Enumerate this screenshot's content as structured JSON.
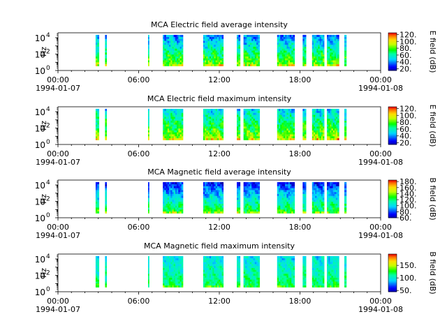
{
  "chart_data": [
    {
      "type": "heatmap",
      "title": "MCA  Electric field average intensity",
      "ylabel": "Hz",
      "y_ticks": [
        "10",
        "10",
        "10"
      ],
      "y_exps": [
        "0",
        "2",
        "4"
      ],
      "x_ticks": [
        "00:00",
        "06:00",
        "12:00",
        "18:00",
        "00:00"
      ],
      "x_dates": [
        "1994-01-07",
        "1994-01-08"
      ],
      "colorbar_label": "E field (dB)",
      "colorbar_ticks": [
        "20.",
        "40.",
        "60.",
        "80.",
        "100.",
        "120."
      ],
      "colorbar_range": [
        15,
        125
      ],
      "colorbar_min": 20,
      "colorbar_step": 20,
      "freq_range_log10": [
        0,
        4.6
      ],
      "data_freq_log10": [
        0.55,
        4.35
      ],
      "segments_hours": [
        [
          2.8,
          3.05
        ],
        [
          3.5,
          3.62
        ],
        [
          6.7,
          6.78
        ],
        [
          7.8,
          9.3
        ],
        [
          10.8,
          12.3
        ],
        [
          13.3,
          13.55
        ],
        [
          13.8,
          15.0
        ],
        [
          16.3,
          17.6
        ],
        [
          18.2,
          18.45
        ],
        [
          18.9,
          19.8
        ],
        [
          20.0,
          20.9
        ],
        [
          21.3,
          21.45
        ]
      ],
      "low_freq_level": 85,
      "high_freq_level": 40
    },
    {
      "type": "heatmap",
      "title": "MCA  Electric field maximum intensity",
      "ylabel": "Hz",
      "y_ticks": [
        "10",
        "10",
        "10"
      ],
      "y_exps": [
        "0",
        "2",
        "4"
      ],
      "x_ticks": [
        "00:00",
        "06:00",
        "12:00",
        "18:00",
        "00:00"
      ],
      "x_dates": [
        "1994-01-07",
        "1994-01-08"
      ],
      "colorbar_label": "E field (dB)",
      "colorbar_ticks": [
        "20.",
        "40.",
        "60.",
        "80.",
        "100.",
        "120."
      ],
      "colorbar_range": [
        15,
        125
      ],
      "colorbar_min": 20,
      "colorbar_step": 20,
      "freq_range_log10": [
        0,
        4.6
      ],
      "data_freq_log10": [
        0.55,
        4.35
      ],
      "segments_hours": [
        [
          2.8,
          3.05
        ],
        [
          3.5,
          3.62
        ],
        [
          6.7,
          6.78
        ],
        [
          7.8,
          9.3
        ],
        [
          10.8,
          12.3
        ],
        [
          13.3,
          13.55
        ],
        [
          13.8,
          15.0
        ],
        [
          16.3,
          17.6
        ],
        [
          18.2,
          18.45
        ],
        [
          18.9,
          19.8
        ],
        [
          20.0,
          20.9
        ],
        [
          21.3,
          21.45
        ]
      ],
      "low_freq_level": 90,
      "high_freq_level": 50
    },
    {
      "type": "heatmap",
      "title": "MCA  Magnetic field average intensity",
      "ylabel": "Hz",
      "y_ticks": [
        "10",
        "10",
        "10"
      ],
      "y_exps": [
        "0",
        "2",
        "4"
      ],
      "x_ticks": [
        "00:00",
        "06:00",
        "12:00",
        "18:00",
        "00:00"
      ],
      "x_dates": [
        "1994-01-07",
        "1994-01-08"
      ],
      "colorbar_label": "B field (dB)",
      "colorbar_ticks": [
        "60.",
        "80.",
        "100.",
        "120.",
        "140.",
        "160.",
        "180."
      ],
      "colorbar_range": [
        60,
        185
      ],
      "colorbar_min": 60,
      "colorbar_step": 20,
      "freq_range_log10": [
        0,
        4.6
      ],
      "data_freq_log10": [
        0.55,
        4.35
      ],
      "segments_hours": [
        [
          2.8,
          3.05
        ],
        [
          3.5,
          3.62
        ],
        [
          6.7,
          6.78
        ],
        [
          7.8,
          9.3
        ],
        [
          10.8,
          12.3
        ],
        [
          13.3,
          13.55
        ],
        [
          13.8,
          15.0
        ],
        [
          16.3,
          17.6
        ],
        [
          18.2,
          18.45
        ],
        [
          18.9,
          19.8
        ],
        [
          20.0,
          20.9
        ],
        [
          21.3,
          21.45
        ]
      ],
      "low_freq_level": 130,
      "high_freq_level": 75
    },
    {
      "type": "heatmap",
      "title": "MCA  Magnetic field maximum intensity",
      "ylabel": "Hz",
      "y_ticks": [
        "10",
        "10",
        "10"
      ],
      "y_exps": [
        "0",
        "2",
        "4"
      ],
      "x_ticks": [
        "00:00",
        "06:00",
        "12:00",
        "18:00",
        "00:00"
      ],
      "x_dates": [
        "1994-01-07",
        "1994-01-08"
      ],
      "colorbar_label": "B field (dB)",
      "colorbar_ticks": [
        "50.",
        "100.",
        "150."
      ],
      "colorbar_range": [
        45,
        195
      ],
      "colorbar_min": 50,
      "colorbar_step": 50,
      "freq_range_log10": [
        0,
        4.6
      ],
      "data_freq_log10": [
        0.55,
        4.35
      ],
      "segments_hours": [
        [
          2.8,
          3.05
        ],
        [
          3.5,
          3.62
        ],
        [
          6.7,
          6.78
        ],
        [
          7.8,
          9.3
        ],
        [
          10.8,
          12.3
        ],
        [
          13.3,
          13.55
        ],
        [
          13.8,
          15.0
        ],
        [
          16.3,
          17.6
        ],
        [
          18.2,
          18.45
        ],
        [
          18.9,
          19.8
        ],
        [
          20.0,
          20.9
        ],
        [
          21.3,
          21.45
        ]
      ],
      "low_freq_level": 120,
      "high_freq_level": 95
    }
  ]
}
